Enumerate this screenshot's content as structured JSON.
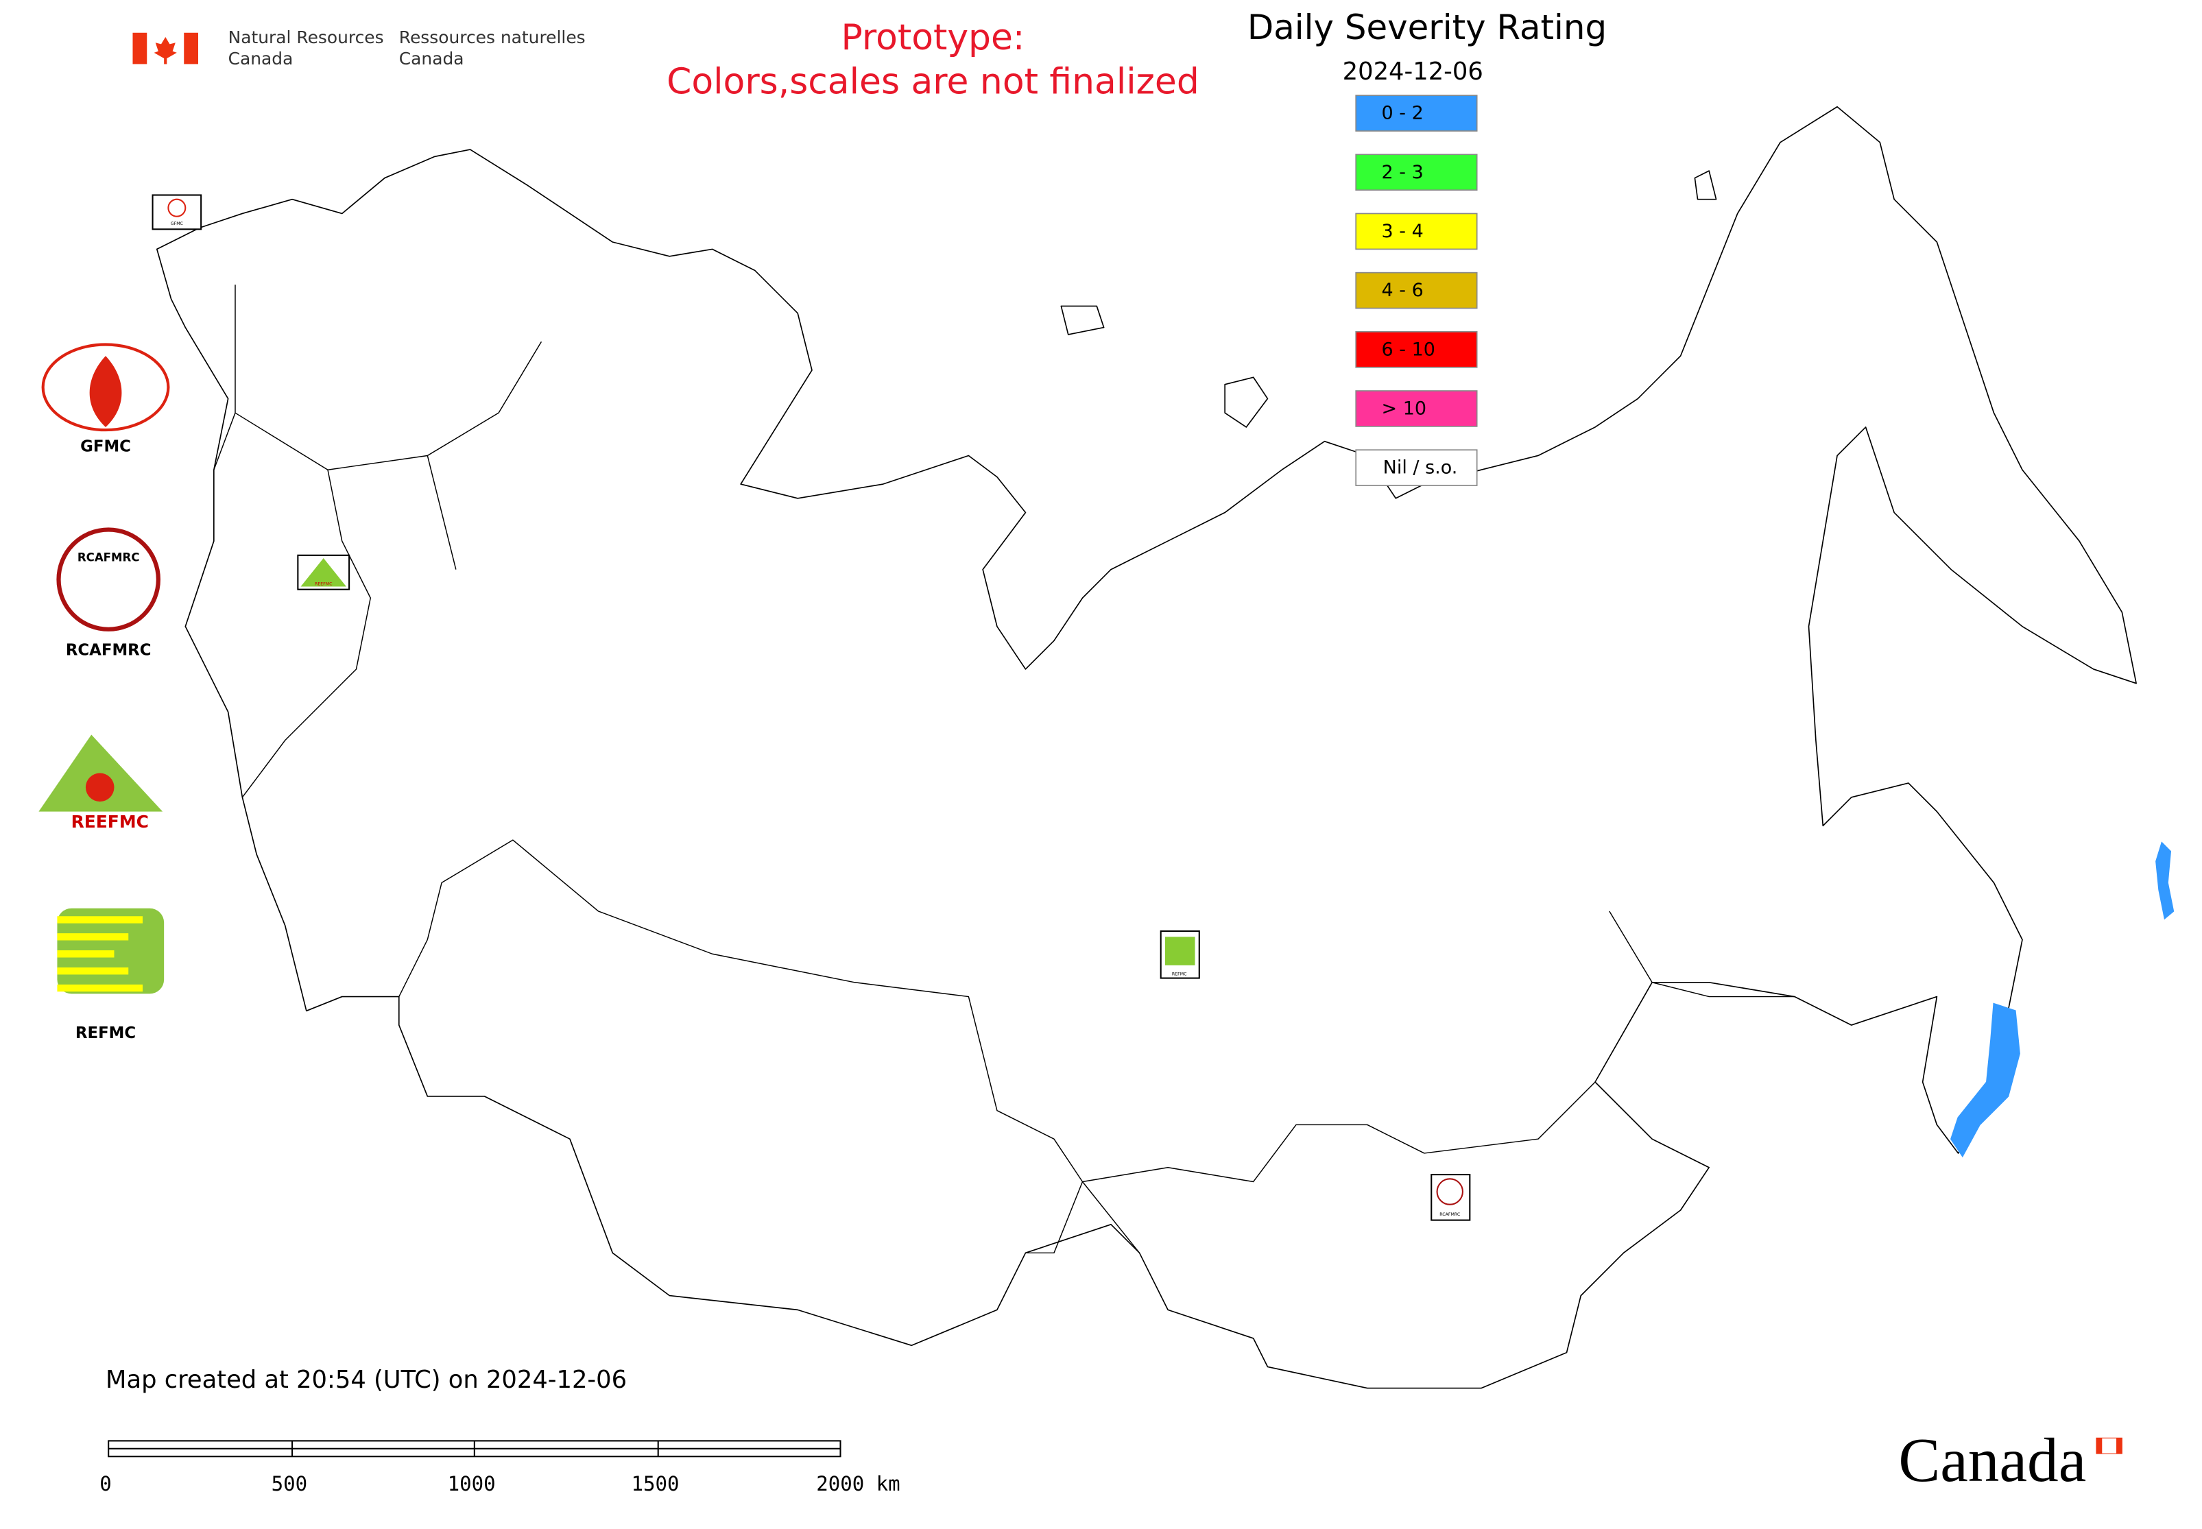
{
  "header": {
    "agency_en": [
      "Natural Resources",
      "Canada"
    ],
    "agency_fr": [
      "Ressources naturelles",
      "Canada"
    ]
  },
  "notice": [
    "Prototype:",
    "Colors,scales are not finalized"
  ],
  "legend": {
    "title": "Daily Severity Rating",
    "date": "2024-12-06",
    "items": [
      {
        "label": "0 - 2",
        "color": "#3399ff"
      },
      {
        "label": "2 - 3",
        "color": "#33ff33"
      },
      {
        "label": "3 - 4",
        "color": "#ffff00"
      },
      {
        "label": "4 - 6",
        "color": "#ddb800"
      },
      {
        "label": "6 - 10",
        "color": "#ff0000"
      },
      {
        "label": "> 10",
        "color": "#ff3399"
      },
      {
        "label": "Nil / s.o.",
        "color": "#ffffff"
      }
    ]
  },
  "logos": [
    "GFMC",
    "RCAFMRC",
    "REEFMC",
    "REFMC"
  ],
  "footer": {
    "created": "Map created at 20:54 (UTC) on 2024-12-06",
    "scale_labels": [
      "0",
      "500",
      "1000",
      "1500",
      "2000 km"
    ],
    "wordmark": "Canada"
  }
}
